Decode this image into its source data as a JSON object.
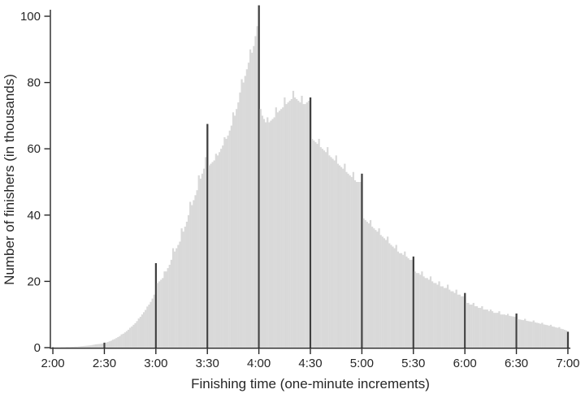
{
  "figure": {
    "background": "#ffffff"
  },
  "colors": {
    "bar": "#d9d9d9",
    "highlight": "#3f3f3f",
    "axis": "#262626",
    "text": "#262626"
  },
  "chart_data": {
    "type": "bar",
    "title": "",
    "xlabel": "Finishing time (one-minute increments)",
    "ylabel": "Number of finishers (in thousands)",
    "x_unit": "minutes",
    "x_start_minutes": 120,
    "x_end_minutes": 420,
    "bin_minutes": 1,
    "x_tick_minutes": [
      120,
      150,
      180,
      210,
      240,
      270,
      300,
      330,
      360,
      390,
      420
    ],
    "x_tick_labels": [
      "2:00",
      "2:30",
      "3:00",
      "3:30",
      "4:00",
      "4:30",
      "5:00",
      "5:30",
      "6:00",
      "6:30",
      "7:00"
    ],
    "y_ticks": [
      0,
      20,
      40,
      60,
      80,
      100
    ],
    "ylim": [
      0,
      105
    ],
    "grid": false,
    "legend": false,
    "bar_color": "#d9d9d9",
    "highlight_color": "#3f3f3f",
    "highlight_rule": "bars at every 30-minute mark are dark spikes",
    "notable_points": {
      "peak_minute": 240,
      "peak_label": "4:00",
      "peak_value": 103.3,
      "spikes": {
        "3:00": 25.5,
        "3:30": 67.5,
        "4:00": 103.3,
        "4:30": 75.5,
        "5:00": 52.5,
        "5:30": 27.5,
        "6:00": 16.5,
        "6:30": 10.3
      }
    },
    "values": [
      0.1,
      0.1,
      0.1,
      0.1,
      0.1,
      0.15,
      0.15,
      0.15,
      0.2,
      0.2,
      0.2,
      0.25,
      0.25,
      0.3,
      0.3,
      0.35,
      0.4,
      0.45,
      0.5,
      0.55,
      0.6,
      0.65,
      0.7,
      0.8,
      0.9,
      1.0,
      1.05,
      1.1,
      1.15,
      1.25,
      1.5,
      1.5,
      1.7,
      1.9,
      2.1,
      2.4,
      2.6,
      2.9,
      3.2,
      3.5,
      4.0,
      4.2,
      4.6,
      5.0,
      5.4,
      6.0,
      6.4,
      6.9,
      7.4,
      8.0,
      8.8,
      9.3,
      10.0,
      10.7,
      11.4,
      12.4,
      13.0,
      13.8,
      14.8,
      16.0,
      25.5,
      19.5,
      20.0,
      20.5,
      21.0,
      23.0,
      23.0,
      24.0,
      25.0,
      26.5,
      30.0,
      29.0,
      30.0,
      31.0,
      32.0,
      36.0,
      35.0,
      36.5,
      38.0,
      40.0,
      44.0,
      43.0,
      44.5,
      46.0,
      47.5,
      52.0,
      51.0,
      52.5,
      54.0,
      57.5,
      67.5,
      55.0,
      55.5,
      56.0,
      56.5,
      58.5,
      58.0,
      59.0,
      60.0,
      61.0,
      63.5,
      63.0,
      64.0,
      65.5,
      67.0,
      71.0,
      70.0,
      72.0,
      74.0,
      77.0,
      81.0,
      80.0,
      82.0,
      84.0,
      86.0,
      90.0,
      89.0,
      91.0,
      94.0,
      97.0,
      103.3,
      72.0,
      70.0,
      69.0,
      68.0,
      69.5,
      68.0,
      68.5,
      69.0,
      69.5,
      72.5,
      71.0,
      71.5,
      72.0,
      72.5,
      75.5,
      73.5,
      74.0,
      74.5,
      75.0,
      77.5,
      75.5,
      75.0,
      74.5,
      74.0,
      76.0,
      73.5,
      73.5,
      74.0,
      74.5,
      75.5,
      63.0,
      62.5,
      62.0,
      61.5,
      63.0,
      60.5,
      60.0,
      59.5,
      59.0,
      60.5,
      58.0,
      57.5,
      57.0,
      56.5,
      58.0,
      55.5,
      55.0,
      54.5,
      54.0,
      55.5,
      53.0,
      52.5,
      52.0,
      51.5,
      53.0,
      50.5,
      50.0,
      50.0,
      50.0,
      52.5,
      39.0,
      38.5,
      38.0,
      37.5,
      38.5,
      36.5,
      36.0,
      35.5,
      35.0,
      36.0,
      34.0,
      33.5,
      33.0,
      32.5,
      33.5,
      31.5,
      31.0,
      30.5,
      30.0,
      31.0,
      29.0,
      28.5,
      28.5,
      28.0,
      29.0,
      27.5,
      27.0,
      26.5,
      26.5,
      27.5,
      23.0,
      22.5,
      22.5,
      22.0,
      23.0,
      21.5,
      21.0,
      21.0,
      20.5,
      21.5,
      20.0,
      19.5,
      19.5,
      19.0,
      20.0,
      18.5,
      18.5,
      18.0,
      18.0,
      19.0,
      17.5,
      17.0,
      17.0,
      16.5,
      17.5,
      16.0,
      16.0,
      15.5,
      15.5,
      16.5,
      13.5,
      13.5,
      13.0,
      13.0,
      13.5,
      12.5,
      12.5,
      12.0,
      12.0,
      12.5,
      11.5,
      11.5,
      11.5,
      11.0,
      11.5,
      11.0,
      10.5,
      10.5,
      10.5,
      11.0,
      10.0,
      10.0,
      10.0,
      9.8,
      10.2,
      9.6,
      9.5,
      9.4,
      9.3,
      10.3,
      8.6,
      8.5,
      8.4,
      8.3,
      8.7,
      8.1,
      8.0,
      7.9,
      7.8,
      8.2,
      7.6,
      7.5,
      7.4,
      7.2,
      7.5,
      7.0,
      6.9,
      6.8,
      6.6,
      6.9,
      6.4,
      6.3,
      6.1,
      6.0,
      6.2,
      5.7,
      5.6,
      5.4,
      5.2,
      4.8
    ]
  }
}
